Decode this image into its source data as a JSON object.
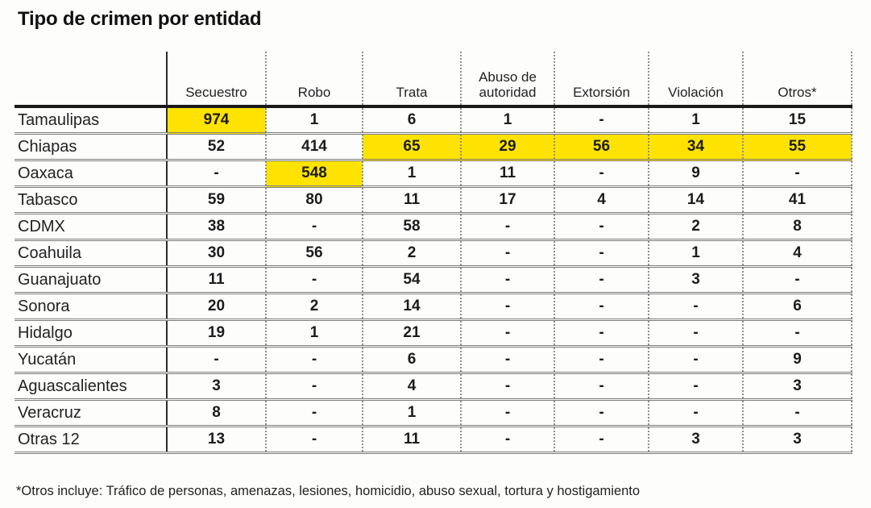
{
  "title": "Tipo de crimen por entidad",
  "footnote": "*Otros incluye: Tráfico de personas, amenazas, lesiones, homicidio, abuso sexual, tortura y hostigamiento",
  "colors": {
    "highlight": "#ffe300",
    "header_rule": "#1a1a1a",
    "column_divider_solid": "#2e2e2e",
    "column_divider_dotted": "#8f8f8f",
    "row_divider": "#7d7d7d",
    "text": "#1c1c1c"
  },
  "chart_data": {
    "type": "table",
    "title": "Tipo de crimen por entidad",
    "corner_label": "",
    "columns": [
      "Secuestro",
      "Robo",
      "Trata",
      "Abuso de autoridad",
      "Extorsión",
      "Violación",
      "Otros*"
    ],
    "rows": [
      {
        "entity": "Tamaulipas",
        "values": [
          "974",
          "1",
          "6",
          "1",
          "-",
          "1",
          "15"
        ],
        "highlight": [
          0
        ]
      },
      {
        "entity": "Chiapas",
        "values": [
          "52",
          "414",
          "65",
          "29",
          "56",
          "34",
          "55"
        ],
        "highlight": [
          2,
          3,
          4,
          5,
          6
        ]
      },
      {
        "entity": "Oaxaca",
        "values": [
          "-",
          "548",
          "1",
          "11",
          "-",
          "9",
          "-"
        ],
        "highlight": [
          1
        ]
      },
      {
        "entity": "Tabasco",
        "values": [
          "59",
          "80",
          "11",
          "17",
          "4",
          "14",
          "41"
        ],
        "highlight": []
      },
      {
        "entity": "CDMX",
        "values": [
          "38",
          "-",
          "58",
          "-",
          "-",
          "2",
          "8"
        ],
        "highlight": []
      },
      {
        "entity": "Coahuila",
        "values": [
          "30",
          "56",
          "2",
          "-",
          "-",
          "1",
          "4"
        ],
        "highlight": []
      },
      {
        "entity": "Guanajuato",
        "values": [
          "11",
          "-",
          "54",
          "-",
          "-",
          "3",
          "-"
        ],
        "highlight": []
      },
      {
        "entity": "Sonora",
        "values": [
          "20",
          "2",
          "14",
          "-",
          "-",
          "-",
          "6"
        ],
        "highlight": []
      },
      {
        "entity": "Hidalgo",
        "values": [
          "19",
          "1",
          "21",
          "-",
          "-",
          "-",
          "-"
        ],
        "highlight": []
      },
      {
        "entity": "Yucatán",
        "values": [
          "-",
          "-",
          "6",
          "-",
          "-",
          "-",
          "9"
        ],
        "highlight": []
      },
      {
        "entity": "Aguascalientes",
        "values": [
          "3",
          "-",
          "4",
          "-",
          "-",
          "-",
          "3"
        ],
        "highlight": []
      },
      {
        "entity": "Veracruz",
        "values": [
          "8",
          "-",
          "1",
          "-",
          "-",
          "-",
          "-"
        ],
        "highlight": []
      },
      {
        "entity": "Otras 12",
        "values": [
          "13",
          "-",
          "11",
          "-",
          "-",
          "3",
          "3"
        ],
        "highlight": []
      }
    ]
  }
}
